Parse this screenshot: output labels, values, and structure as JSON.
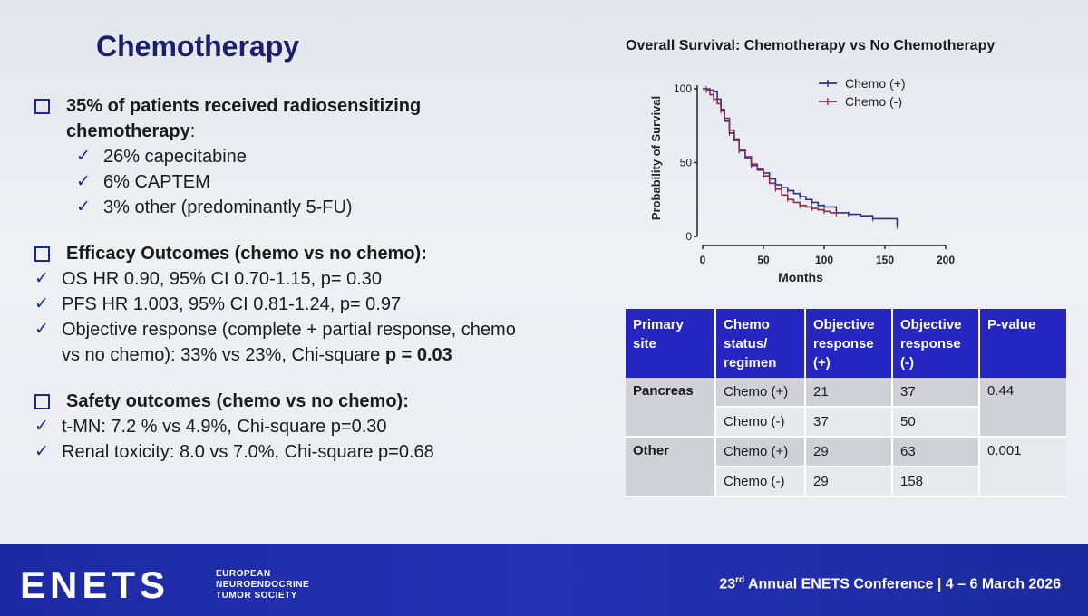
{
  "slide": {
    "title": "Chemotherapy",
    "section1": {
      "heading_line1": "35% of patients received radiosensitizing",
      "heading_line2": "chemotherapy",
      "items": [
        "26% capecitabine",
        "6% CAPTEM",
        "3% other (predominantly 5-FU)"
      ]
    },
    "section2": {
      "heading": "Efficacy Outcomes (chemo vs no chemo):",
      "item1": "OS HR 0.90, 95% CI 0.70-1.15, p= 0.30",
      "item2": "PFS HR 1.003, 95% CI 0.81-1.24, p= 0.97",
      "item3_line1": "Objective response (complete + partial response, chemo",
      "item3_line2": "vs no chemo):  33% vs 23%, Chi-square ",
      "item3_bold": "p = 0.03"
    },
    "section3": {
      "heading": "Safety outcomes (chemo vs no chemo):",
      "item1": "t-MN: 7.2 % vs 4.9%, Chi-square p=0.30",
      "item2": "Renal toxicity: 8.0 vs 7.0%, Chi-square p=0.68"
    }
  },
  "chart_data": {
    "type": "line",
    "title": "Overall Survival: Chemotherapy vs No Chemotherapy",
    "xlabel": "Months",
    "ylabel": "Probability of Survival",
    "xlim": [
      0,
      200
    ],
    "ylim": [
      0,
      100
    ],
    "xticks": [
      "0",
      "50",
      "100",
      "150",
      "200"
    ],
    "yticks": [
      "0",
      "50",
      "100"
    ],
    "legend_position": "top-right",
    "series": [
      {
        "name": "Chemo (+)",
        "color": "#2b2f8f",
        "x": [
          0,
          3,
          6,
          9,
          12,
          15,
          18,
          22,
          26,
          30,
          35,
          40,
          45,
          50,
          55,
          60,
          65,
          70,
          75,
          80,
          85,
          90,
          95,
          100,
          110,
          120,
          130,
          140,
          150,
          160
        ],
        "y": [
          100,
          100,
          99,
          98,
          93,
          86,
          78,
          70,
          65,
          58,
          53,
          48,
          45,
          43,
          39,
          35,
          33,
          31,
          29,
          27,
          25,
          23,
          21,
          20,
          16,
          15,
          14,
          12,
          12,
          7
        ]
      },
      {
        "name": "Chemo (-)",
        "color": "#8b2a4a",
        "x": [
          0,
          3,
          6,
          9,
          12,
          15,
          18,
          22,
          26,
          30,
          35,
          40,
          45,
          50,
          55,
          60,
          65,
          70,
          75,
          80,
          85,
          90,
          95,
          100,
          105,
          110
        ],
        "y": [
          100,
          99,
          96,
          93,
          90,
          85,
          80,
          72,
          66,
          59,
          54,
          49,
          46,
          41,
          36,
          32,
          28,
          25,
          23,
          21,
          20,
          19,
          18,
          17,
          16,
          15
        ]
      }
    ]
  },
  "table": {
    "headers": [
      "Primary site",
      "Chemo status/ regimen",
      "Objective response (+)",
      "Objective response (-)",
      "P-value"
    ],
    "header_lines": [
      [
        "Primary",
        "site"
      ],
      [
        "Chemo",
        "status/",
        "regimen"
      ],
      [
        "Objective",
        "response",
        "(+)"
      ],
      [
        "Objective",
        "response",
        "(-)"
      ],
      [
        "P-value"
      ]
    ],
    "rows": [
      {
        "site": "Pancreas",
        "regimen": "Chemo (+)",
        "resp_pos": "21",
        "resp_neg": "37",
        "p": "0.44"
      },
      {
        "site": "",
        "regimen": "Chemo (-)",
        "resp_pos": "37",
        "resp_neg": "50",
        "p": ""
      },
      {
        "site": "Other",
        "regimen": "Chemo (+)",
        "resp_pos": "29",
        "resp_neg": "63",
        "p": "0.001"
      },
      {
        "site": "",
        "regimen": "Chemo (-)",
        "resp_pos": "29",
        "resp_neg": "158",
        "p": ""
      }
    ]
  },
  "footer": {
    "logo": "ENETS",
    "society_line1": "EUROPEAN",
    "society_line2": "NEUROENDOCRINE",
    "society_line3": "TUMOR SOCIETY",
    "conf_ordinal": "23",
    "conf_suffix": "rd",
    "conf_text": " Annual ENETS Conference | 4 – 6 March 2026"
  }
}
